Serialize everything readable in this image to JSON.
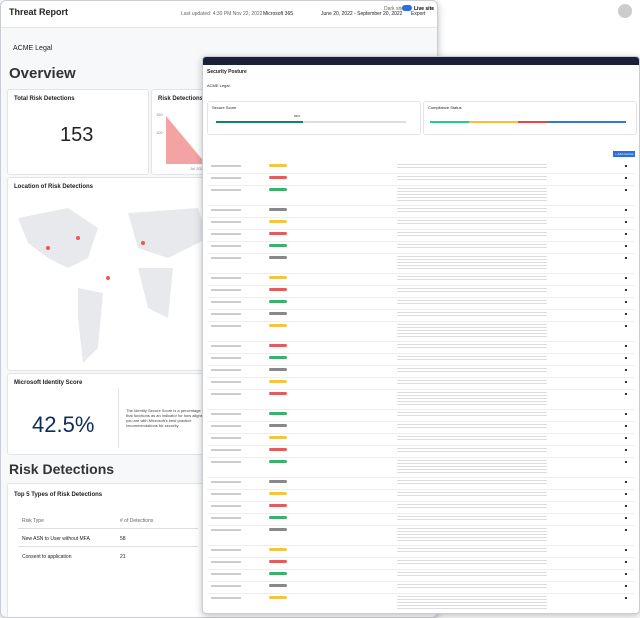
{
  "left_window": {
    "header": {
      "title": "Threat Report",
      "last_updated": "Last updated: 4:30 PM Nov 22, 2022",
      "tenant": "Microsoft 365",
      "date_range": "June 20, 2022 - September 20, 2022",
      "export": "Export",
      "dark_site": "Dark site",
      "live_site": "Live site"
    },
    "org": "ACME Legal",
    "overview": "Overview",
    "total_risk": {
      "title": "Total Risk Detections",
      "value": "153"
    },
    "trend": {
      "title": "Risk Detections Trend",
      "ticks": [
        "150",
        "100"
      ],
      "x_label": "Jul 2022"
    },
    "location": {
      "title": "Location of Risk Detections"
    },
    "identity": {
      "title": "Microsoft Identity Score",
      "value": "42.5%",
      "description": "The Identity Secure Score is a percentage that functions as an indicator for how aligned you are with Microsoft's best practice recommendations for security."
    },
    "risk_detections": {
      "heading": "Risk Detections",
      "card_title": "Top 5 Types of Risk Detections",
      "columns": [
        "Risk Type",
        "# of Detections"
      ],
      "rows": [
        [
          "New ASN to User without MFA",
          "58"
        ],
        [
          "Consent to application",
          "21"
        ]
      ]
    }
  },
  "right_window": {
    "title": "Security Posture",
    "org": "ACME Legal",
    "secure_score": "Secure Score",
    "compliance": "Compliance Status",
    "score_value": "69%",
    "button": "+ Add Control"
  }
}
